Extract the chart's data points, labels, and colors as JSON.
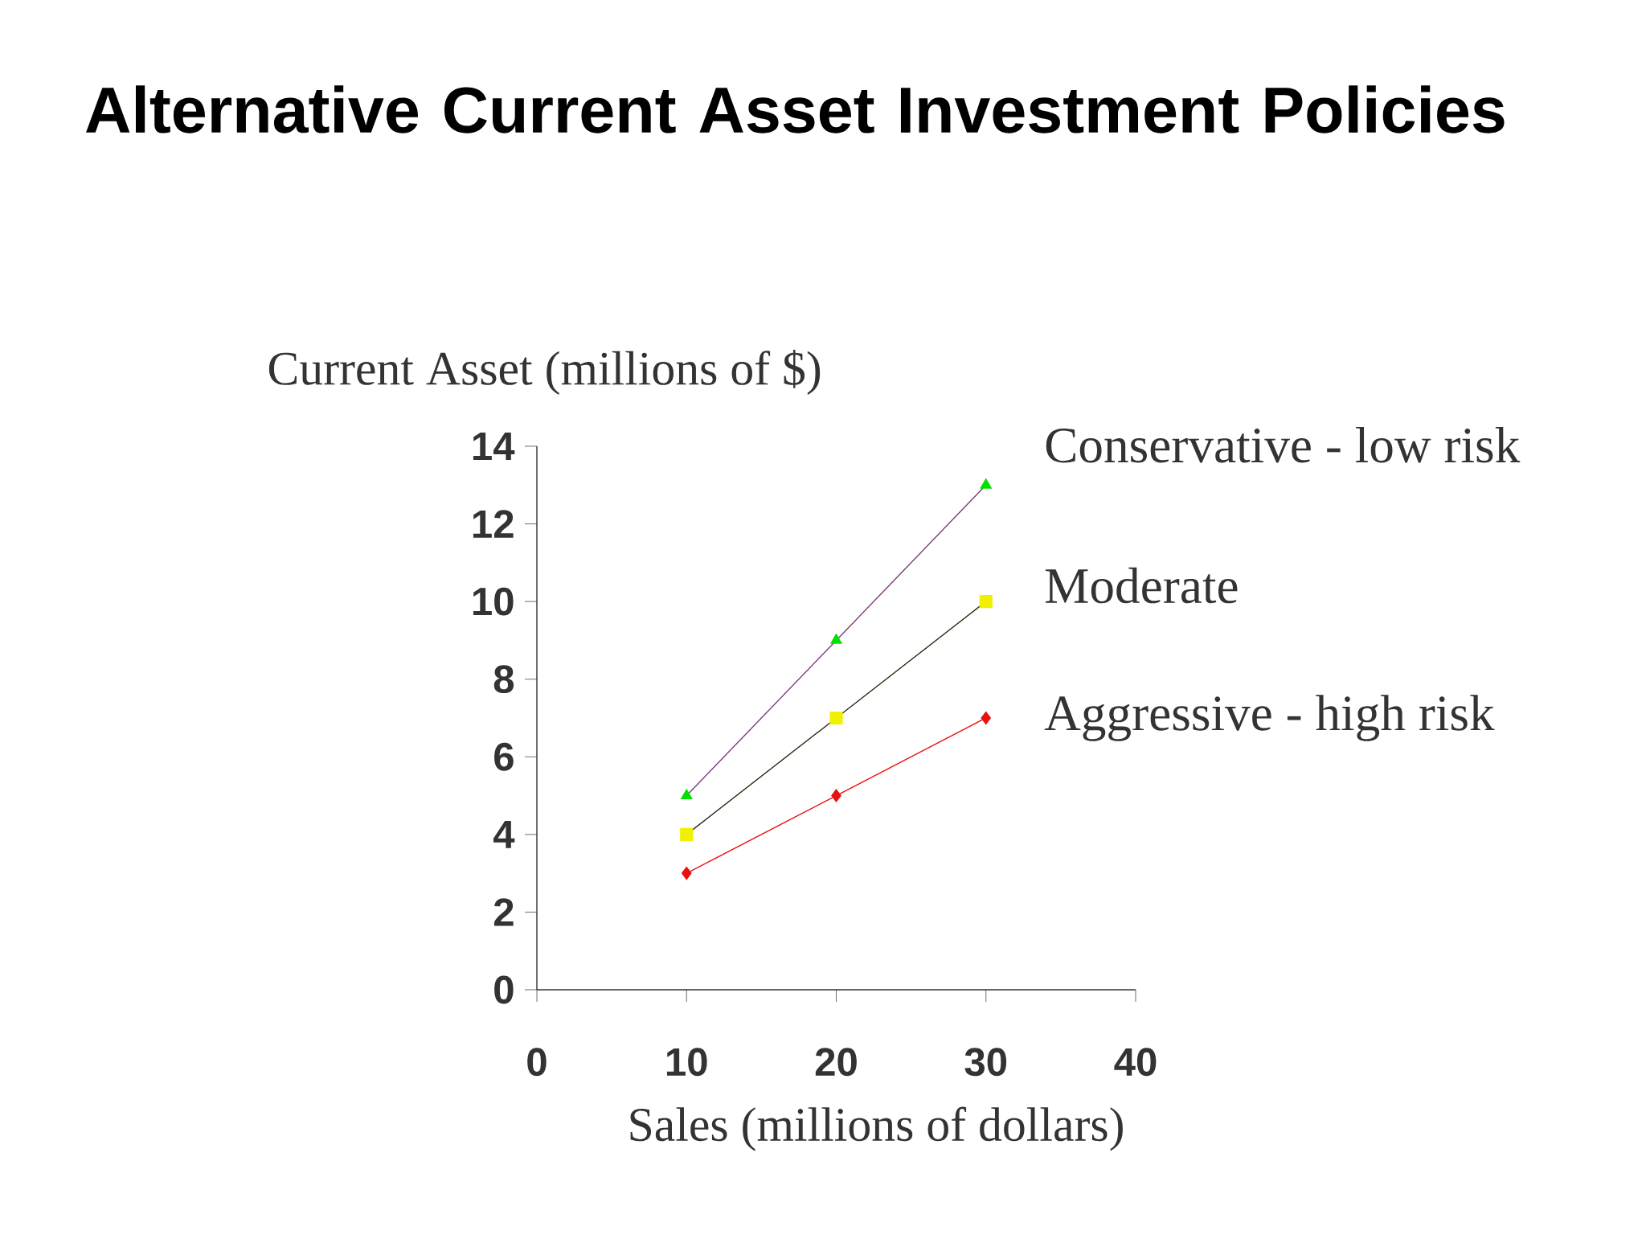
{
  "chart_data": {
    "type": "line",
    "title": "Alternative Current Asset Investment Policies",
    "xlabel": "Sales (millions of dollars)",
    "ylabel": "Current Asset (millions of $)",
    "x": [
      10,
      20,
      30
    ],
    "series": [
      {
        "name": "Conservative - low risk",
        "color": "#7b3f7b",
        "colors": [
          "#00e000",
          "#00e000",
          "#00e000"
        ],
        "marker": "triangle",
        "values": [
          5,
          9,
          13
        ]
      },
      {
        "name": "Moderate",
        "color": "#2a2a10",
        "colors": [
          "#f0f000",
          "#f0f000",
          "#f0f000"
        ],
        "marker": "square",
        "values": [
          4,
          7,
          10
        ]
      },
      {
        "name": "Aggressive - high risk",
        "color": "#e81010",
        "colors": [
          "#e81010",
          "#e81010",
          "#e81010"
        ],
        "marker": "diamond",
        "values": [
          3,
          5,
          7
        ]
      }
    ],
    "xlim": [
      0,
      40
    ],
    "ylim": [
      0,
      14
    ],
    "xticks": [
      0,
      10,
      20,
      30,
      40
    ],
    "yticks": [
      0,
      2,
      4,
      6,
      8,
      10,
      12,
      14
    ],
    "grid": false,
    "legend": false
  }
}
